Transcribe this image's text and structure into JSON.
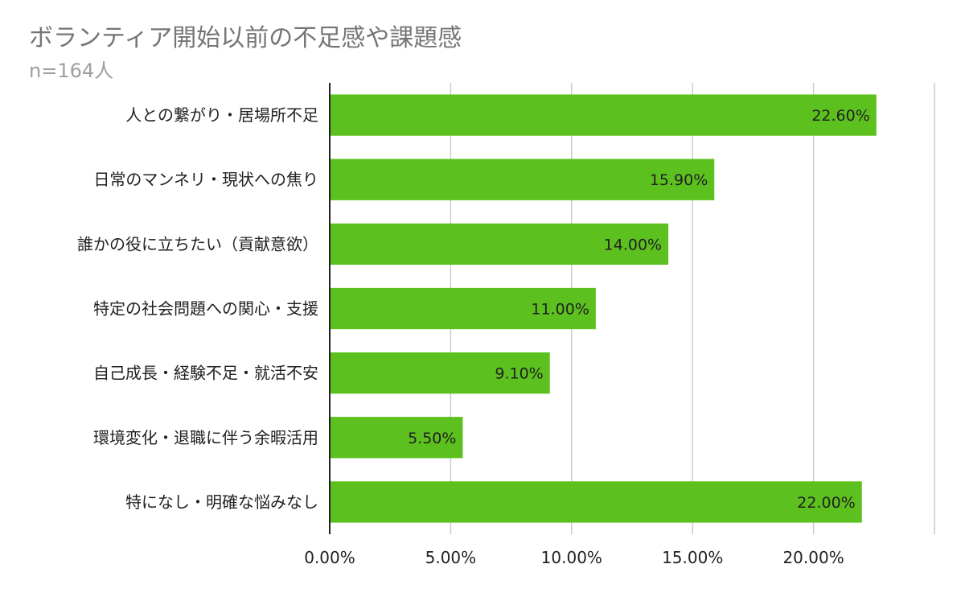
{
  "chart_data": {
    "type": "bar",
    "orientation": "horizontal",
    "title": "ボランティア開始以前の不足感や課題感",
    "subtitle": "n=164人",
    "categories": [
      "人との繋がり・居場所不足",
      "日常のマンネリ・現状への焦り",
      "誰かの役に立ちたい（貢献意欲）",
      "特定の社会問題への関心・支援",
      "自己成長・経験不足・就活不安",
      "環境変化・退職に伴う余暇活用",
      "特になし・明確な悩みなし"
    ],
    "values": [
      22.6,
      15.9,
      14.0,
      11.0,
      9.1,
      5.5,
      22.0
    ],
    "data_labels": [
      "22.60%",
      "15.90%",
      "14.00%",
      "11.00%",
      "9.10%",
      "5.50%",
      "22.00%"
    ],
    "x_ticks": [
      "0.00%",
      "5.00%",
      "10.00%",
      "15.00%",
      "20.00%"
    ],
    "xlim": [
      0,
      25
    ],
    "grid": true,
    "legend": "none",
    "bar_color": "#5cc11e"
  }
}
